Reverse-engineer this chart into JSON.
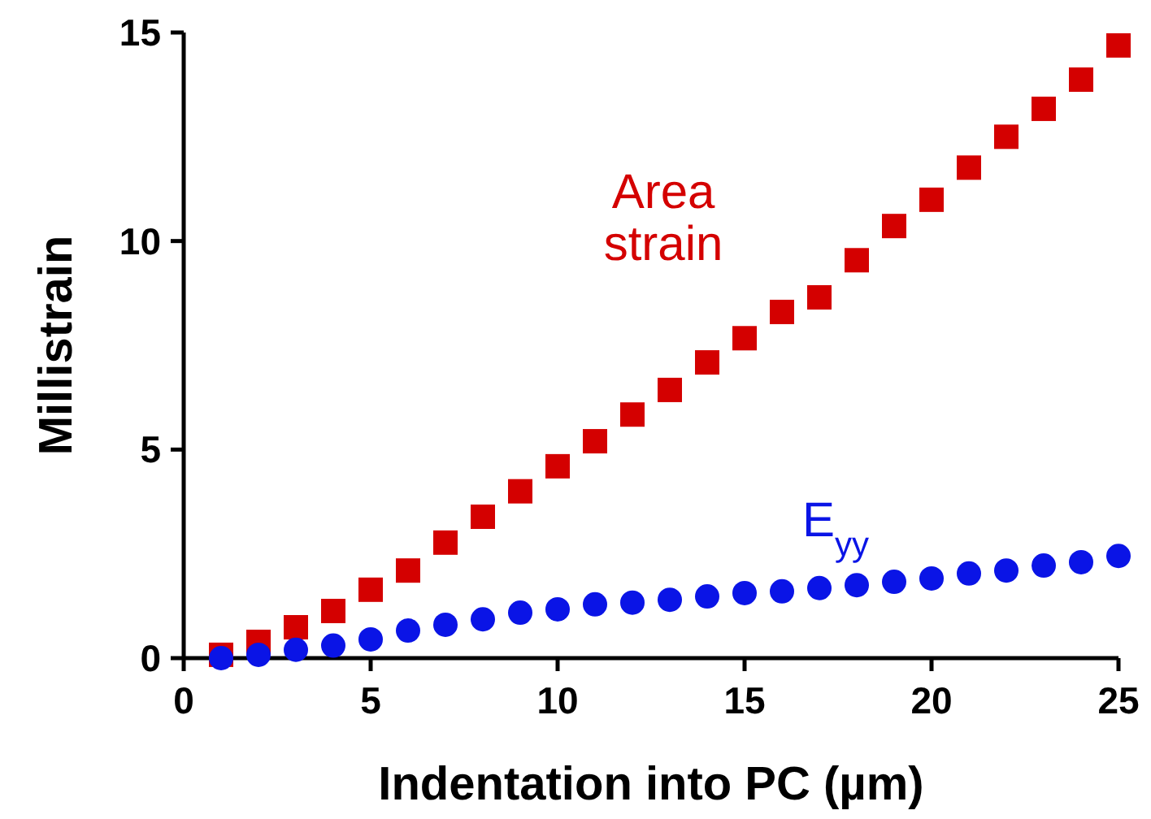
{
  "chart_data": {
    "type": "scatter",
    "xlabel": "Indentation into PC (µm)",
    "ylabel": "Millistrain",
    "xlim": [
      0,
      25
    ],
    "ylim": [
      0,
      15
    ],
    "xticks": [
      0,
      5,
      10,
      15,
      20,
      25
    ],
    "yticks": [
      0,
      5,
      10,
      15
    ],
    "grid": false,
    "x": [
      1,
      2,
      3,
      4,
      5,
      6,
      7,
      8,
      9,
      10,
      11,
      12,
      13,
      14,
      15,
      16,
      17,
      18,
      19,
      20,
      21,
      22,
      23,
      24,
      25
    ],
    "series": [
      {
        "name": "Area strain",
        "color": "#d40000",
        "marker": "square",
        "values": [
          0.08,
          0.39,
          0.74,
          1.13,
          1.64,
          2.1,
          2.77,
          3.39,
          4.0,
          4.6,
          5.2,
          5.84,
          6.43,
          7.09,
          7.67,
          8.3,
          8.65,
          9.54,
          10.36,
          10.99,
          11.76,
          12.5,
          13.17,
          13.87,
          14.69
        ]
      },
      {
        "name": "E$_{yy}$",
        "color": "#0a14e6",
        "marker": "circle",
        "values": [
          0,
          0.08,
          0.2,
          0.3,
          0.45,
          0.66,
          0.8,
          0.93,
          1.09,
          1.17,
          1.29,
          1.33,
          1.4,
          1.48,
          1.56,
          1.6,
          1.68,
          1.75,
          1.83,
          1.91,
          2.03,
          2.1,
          2.22,
          2.3,
          2.45
        ]
      }
    ]
  }
}
